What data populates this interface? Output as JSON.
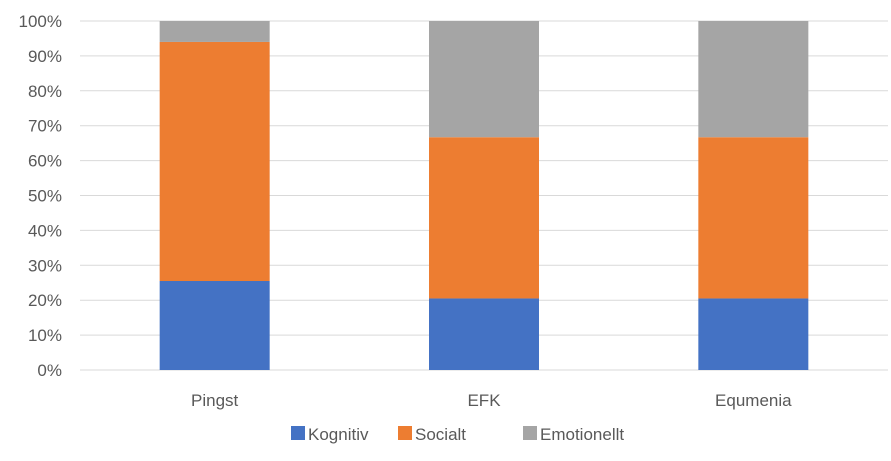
{
  "chart_data": {
    "type": "bar",
    "stacked": true,
    "percent": true,
    "categories": [
      "Pingst",
      "EFK",
      "Equmenia"
    ],
    "series": [
      {
        "name": "Kognitiv",
        "values": [
          25.5,
          20.5,
          20.5
        ],
        "color": "#4472C4"
      },
      {
        "name": "Socialt",
        "values": [
          68.5,
          46.2,
          46.2
        ],
        "color": "#ED7D31"
      },
      {
        "name": "Emotionellt",
        "values": [
          6.0,
          33.3,
          33.3
        ],
        "color": "#A5A5A5"
      }
    ],
    "ylim": [
      0,
      100
    ],
    "yticks": [
      "0%",
      "10%",
      "20%",
      "30%",
      "40%",
      "50%",
      "60%",
      "70%",
      "80%",
      "90%",
      "100%"
    ],
    "grid": true,
    "legend_position": "bottom",
    "gridline_color": "#D9D9D9",
    "text_color": "#595959"
  }
}
